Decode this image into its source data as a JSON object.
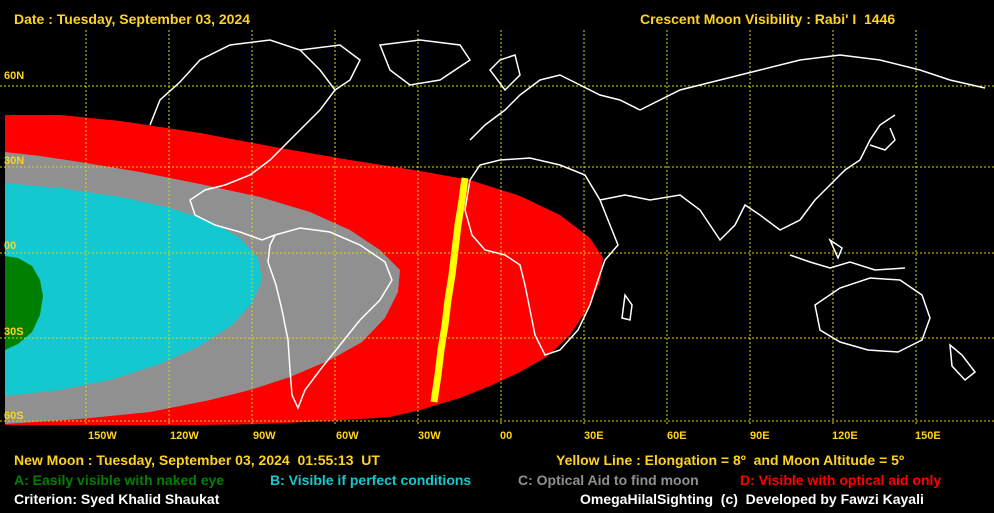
{
  "header": {
    "date": "Date : Tuesday, September 03, 2024",
    "title": "Crescent Moon Visibility : Rabi' I  1446"
  },
  "footer": {
    "new_moon": "New Moon : Tuesday, September 03, 2024  01:55:13  UT",
    "yellow_line": "Yellow Line : Elongation = 8º  and Moon Altitude = 5º",
    "legend": [
      {
        "code": "A",
        "text": "A: Easily visible with naked eye",
        "color": "#008000"
      },
      {
        "code": "B",
        "text": "B: Visible if perfect conditions",
        "color": "#13c9cf"
      },
      {
        "code": "C",
        "text": "C: Optical Aid to find moon",
        "color": "#909090"
      },
      {
        "code": "D",
        "text": "D: Visible with optical aid only",
        "color": "#ff0000"
      }
    ],
    "criterion": "Criterion: Syed Khalid Shaukat",
    "credit": "OmegaHilalSighting  (c)  Developed by Fawzi Kayali"
  },
  "map": {
    "lat_labels": [
      "60N",
      "30N",
      "00",
      "30S",
      "60S"
    ],
    "lon_labels": [
      "150W",
      "120W",
      "90W",
      "60W",
      "30W",
      "00",
      "30E",
      "60E",
      "90E",
      "120E",
      "150E"
    ],
    "colors": {
      "background": "#000000",
      "grid": "#d8d800",
      "coast": "#ffffff",
      "yellow_line": "#ffff00"
    }
  }
}
